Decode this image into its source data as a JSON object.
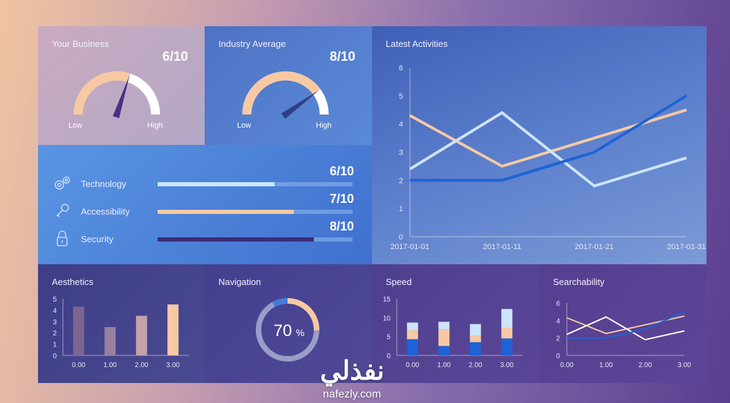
{
  "your_business": {
    "title": "Your Business",
    "score": "6/10",
    "value": 6,
    "max": 10,
    "low": "Low",
    "high": "High"
  },
  "industry_average": {
    "title": "Industry Average",
    "score": "8/10",
    "value": 8,
    "max": 10,
    "low": "Low",
    "high": "High"
  },
  "metrics": [
    {
      "label": "Technology",
      "score": "6/10",
      "value": 6,
      "icon": "gears-icon",
      "color": "#cfe6ff"
    },
    {
      "label": "Accessibility",
      "score": "7/10",
      "value": 7,
      "icon": "key-icon",
      "color": "#f7c9a3"
    },
    {
      "label": "Security",
      "score": "8/10",
      "value": 8,
      "icon": "lock-icon",
      "color": "#3d2a78"
    }
  ],
  "navigation": {
    "title": "Navigation",
    "value_text": "70",
    "unit": "%",
    "fraction": 0.7
  },
  "watermark": {
    "arabic": "نفذلي",
    "latin": "nafezly.com"
  },
  "chart_data": [
    {
      "id": "latest-activities",
      "type": "line",
      "title": "Latest Activities",
      "x": [
        "2017-01-01",
        "2017-01-11",
        "2017-01-21",
        "2017-01-31"
      ],
      "x_ticks": [
        "2017-01-01",
        "2017-01-11",
        "2017-01-21",
        "2017-01-31"
      ],
      "y_ticks": [
        0,
        1,
        2,
        3,
        4,
        5,
        6
      ],
      "ylim": [
        0,
        6
      ],
      "grid": false,
      "series": [
        {
          "values": [
            4.3,
            2.5,
            3.5,
            4.5
          ],
          "color": "#f7c9a3"
        },
        {
          "values": [
            2.4,
            4.4,
            1.8,
            2.8
          ],
          "color": "#cde4fb"
        },
        {
          "values": [
            2.0,
            2.0,
            3.0,
            5.0
          ],
          "color": "#1e63d6"
        }
      ]
    },
    {
      "id": "aesthetics",
      "type": "bar",
      "title": "Aesthetics",
      "categories": [
        "0.00",
        "1.00",
        "2.00",
        "3.00"
      ],
      "values": [
        4.3,
        2.5,
        3.5,
        4.5
      ],
      "colors": [
        "#7a6590",
        "#9a80a0",
        "#c4a3a8",
        "#f7c9a3"
      ],
      "y_ticks": [
        0,
        1,
        2,
        3,
        4,
        5
      ],
      "ylim": [
        0,
        5
      ]
    },
    {
      "id": "speed",
      "type": "bar",
      "stacked": true,
      "title": "Speed",
      "categories": [
        "0.00",
        "1.00",
        "2.00",
        "3.00"
      ],
      "series": [
        {
          "values": [
            4.3,
            2.5,
            3.5,
            4.5
          ],
          "color": "#1e63d6"
        },
        {
          "values": [
            2.4,
            4.4,
            1.8,
            2.8
          ],
          "color": "#f7c9a3"
        },
        {
          "values": [
            2.0,
            2.0,
            3.0,
            5.0
          ],
          "color": "#cde4fb"
        }
      ],
      "y_ticks": [
        0,
        5,
        10,
        15
      ],
      "ylim": [
        0,
        15
      ]
    },
    {
      "id": "searchability",
      "type": "line",
      "title": "Searchability",
      "x": [
        0,
        1,
        2,
        3
      ],
      "x_ticks": [
        "0.00",
        "1.00",
        "2.00",
        "3.00"
      ],
      "y_ticks": [
        0,
        2,
        4,
        6
      ],
      "ylim": [
        0,
        6
      ],
      "series": [
        {
          "values": [
            4.3,
            2.5,
            3.5,
            4.5
          ],
          "color": "#f7c9a3"
        },
        {
          "values": [
            2.4,
            4.4,
            1.8,
            2.8
          ],
          "color": "#ffffff"
        },
        {
          "values": [
            2.0,
            2.0,
            3.0,
            5.0
          ],
          "color": "#1e63d6"
        }
      ]
    }
  ]
}
